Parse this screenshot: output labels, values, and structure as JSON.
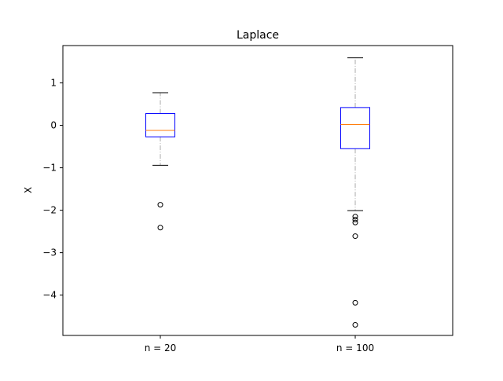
{
  "chart_data": {
    "type": "box",
    "title": "Laplace",
    "xlabel": "",
    "ylabel": "X",
    "ylim": [
      -4.95,
      1.88
    ],
    "yticks": [
      1,
      0,
      -1,
      -2,
      -3,
      -4
    ],
    "ytick_labels": [
      "1",
      "0",
      "−1",
      "−2",
      "−3",
      "−4"
    ],
    "categories": [
      "n = 20",
      "n = 100"
    ],
    "grid": false,
    "colors": {
      "box_edge": "#0000ff",
      "median": "#ff7f0e",
      "whisker": "#aaaaaa",
      "cap": "#000000",
      "flier": "#000000"
    },
    "boxes": [
      {
        "label": "n = 20",
        "q1": -0.27,
        "median": -0.12,
        "q3": 0.28,
        "whisker_low": -0.94,
        "whisker_high": 0.77,
        "fliers": [
          -1.87,
          -2.41
        ]
      },
      {
        "label": "n = 100",
        "q1": -0.55,
        "median": 0.02,
        "q3": 0.42,
        "whisker_low": -2.01,
        "whisker_high": 1.59,
        "fliers": [
          -2.15,
          -2.22,
          -2.29,
          -2.61,
          -4.18,
          -4.7
        ]
      }
    ]
  }
}
